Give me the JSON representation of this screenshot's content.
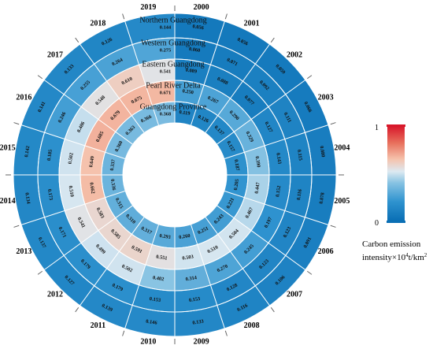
{
  "chart_data": {
    "type": "radial-heatmap",
    "years": [
      "2000",
      "2001",
      "2002",
      "2003",
      "2004",
      "2005",
      "2006",
      "2007",
      "2008",
      "2009",
      "2010",
      "2011",
      "2012",
      "2013",
      "2014",
      "2015",
      "2016",
      "2017",
      "2018",
      "2019"
    ],
    "series": [
      {
        "name": "Northern Guangdong",
        "values": [
          0.056,
          0.056,
          0.059,
          0.066,
          0.08,
          0.078,
          0.091,
          0.106,
          0.116,
          0.133,
          0.146,
          0.139,
          0.127,
          0.137,
          0.134,
          0.142,
          0.141,
          0.133,
          0.126,
          0.144
        ]
      },
      {
        "name": "Western Guangdong",
        "values": [
          0.06,
          0.071,
          0.092,
          0.111,
          0.115,
          0.116,
          0.123,
          0.123,
          0.128,
          0.153,
          0.153,
          0.179,
          0.179,
          0.171,
          0.173,
          0.185,
          0.246,
          0.255,
          0.264,
          0.275
        ]
      },
      {
        "name": "Eastern Guangdong",
        "values": [
          0.089,
          0.088,
          0.077,
          0.127,
          0.143,
          0.152,
          0.197,
          0.245,
          0.27,
          0.314,
          0.402,
          0.502,
          0.499,
          0.541,
          0.51,
          0.502,
          0.486,
          0.548,
          0.61,
          0.541
        ]
      },
      {
        "name": "Pearl River Delta",
        "values": [
          0.25,
          0.267,
          0.29,
          0.329,
          0.39,
          0.447,
          0.467,
          0.504,
          0.51,
          0.503,
          0.551,
          0.591,
          0.585,
          0.583,
          0.662,
          0.649,
          0.685,
          0.679,
          0.675,
          0.671
        ]
      },
      {
        "name": "Guangdong Province",
        "values": [
          0.119,
          0.126,
          0.137,
          0.157,
          0.187,
          0.205,
          0.221,
          0.243,
          0.251,
          0.26,
          0.293,
          0.317,
          0.31,
          0.315,
          0.336,
          0.337,
          0.36,
          0.363,
          0.366,
          0.368
        ]
      }
    ],
    "colorscale": {
      "min": 0,
      "max": 1,
      "colors": [
        "#0a6fb5",
        "#2f93cf",
        "#88c3e3",
        "#dde9f1",
        "#f5c2ac",
        "#e8705d",
        "#d8182b"
      ]
    },
    "legend": {
      "min_label": "0",
      "max_label": "1",
      "title_line1": "Carbon emission",
      "title_line2_prefix": "intensity×10",
      "title_line2_sup": "4",
      "title_line2_suffix": "t/km",
      "title_line2_sup2": "2"
    }
  }
}
